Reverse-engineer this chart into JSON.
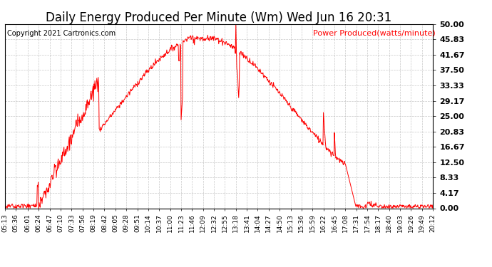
{
  "title": "Daily Energy Produced Per Minute (Wm) Wed Jun 16 20:31",
  "copyright": "Copyright 2021 Cartronics.com",
  "legend_label": "Power Produced(watts/minute)",
  "line_color": "red",
  "background_color": "#ffffff",
  "grid_color": "#b0b0b0",
  "ylim": [
    0,
    50
  ],
  "yticks": [
    0.0,
    4.17,
    8.33,
    12.5,
    16.67,
    20.83,
    25.0,
    29.17,
    33.33,
    37.5,
    41.67,
    45.83,
    50.0
  ],
  "xtick_labels": [
    "05:13",
    "05:36",
    "06:01",
    "06:24",
    "06:47",
    "07:10",
    "07:33",
    "07:56",
    "08:19",
    "08:42",
    "09:05",
    "09:28",
    "09:51",
    "10:14",
    "10:37",
    "11:00",
    "11:23",
    "11:46",
    "12:09",
    "12:32",
    "12:55",
    "13:18",
    "13:41",
    "14:04",
    "14:27",
    "14:50",
    "15:13",
    "15:36",
    "15:59",
    "16:22",
    "16:45",
    "17:08",
    "17:31",
    "17:54",
    "18:17",
    "18:40",
    "19:03",
    "19:26",
    "19:49",
    "20:12"
  ],
  "title_fontsize": 12,
  "copyright_fontsize": 7,
  "legend_fontsize": 8,
  "axis_fontsize": 6.5,
  "ytick_fontsize": 8
}
